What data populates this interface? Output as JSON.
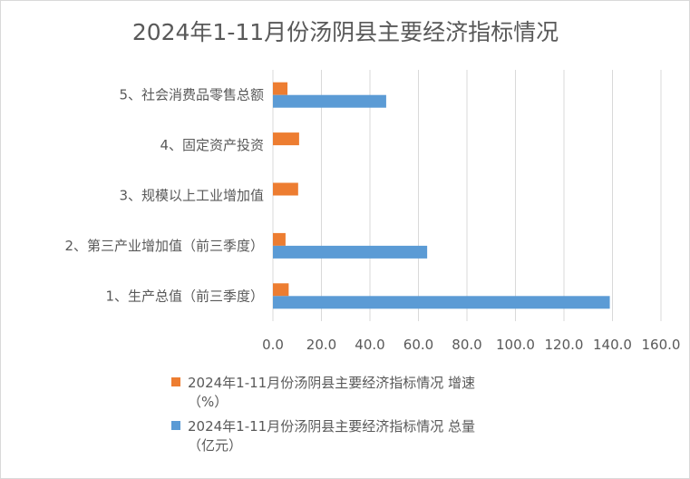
{
  "chart_data": {
    "type": "bar",
    "orientation": "horizontal",
    "title": "2024年1-11月份汤阴县主要经济指标情况",
    "categories": [
      "5、社会消费品零售总额",
      "4、固定资产投资",
      "3、规模以上工业增加值",
      "2、第三产业增加值（前三季度）",
      "1、生产总值（前三季度）"
    ],
    "series": [
      {
        "name": "2024年1-11月份汤阴县主要经济指标情况 增速",
        "name_line2": "（%）",
        "color": "#ed7d31",
        "values": [
          6.0,
          10.8,
          10.4,
          5.2,
          6.5
        ]
      },
      {
        "name": "2024年1-11月份汤阴县主要经济指标情况 总量",
        "name_line2": "（亿元）",
        "color": "#5b9bd5",
        "values": [
          46.7,
          null,
          null,
          63.6,
          138.9
        ]
      }
    ],
    "xlim": [
      0,
      160
    ],
    "xticks": [
      "0.0",
      "20.0",
      "40.0",
      "60.0",
      "80.0",
      "100.0",
      "120.0",
      "140.0",
      "160.0"
    ],
    "grid": true,
    "gridline_color": "#d9d9d9",
    "legend_position": "bottom"
  }
}
